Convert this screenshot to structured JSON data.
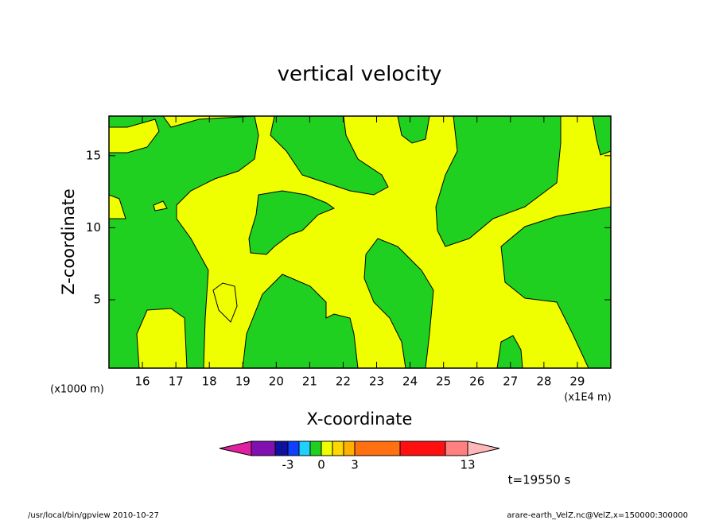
{
  "chart_data": {
    "type": "contour",
    "title": "vertical velocity",
    "x_label": "X-coordinate",
    "y_label": "Z-coordinate",
    "x_unit": "(x1E4 m)",
    "y_unit": "(x1000 m)",
    "xlim": [
      15,
      30
    ],
    "ylim": [
      0.25,
      17.75
    ],
    "xticks": [
      16,
      17,
      18,
      19,
      20,
      21,
      22,
      23,
      24,
      25,
      26,
      27,
      28,
      29
    ],
    "yticks": [
      5,
      10,
      15
    ],
    "colorbar": {
      "under_color": "#e020a0",
      "colors": [
        "#8010b0",
        "#1010a0",
        "#1040ff",
        "#20d0ff",
        "#20d020",
        "#f0ff00",
        "#ffd800",
        "#ffb000",
        "#ff7010",
        "#ff1010",
        "#ff8080"
      ],
      "over_color": "#ffb8b8",
      "ticks": [
        -3,
        0,
        3,
        13
      ]
    },
    "time_label": "t=19550 s",
    "footer_left": "/usr/local/bin/gpview  2010-10-27",
    "footer_right": "arare-earth_VelZ.nc@VelZ,x=150000:300000"
  }
}
